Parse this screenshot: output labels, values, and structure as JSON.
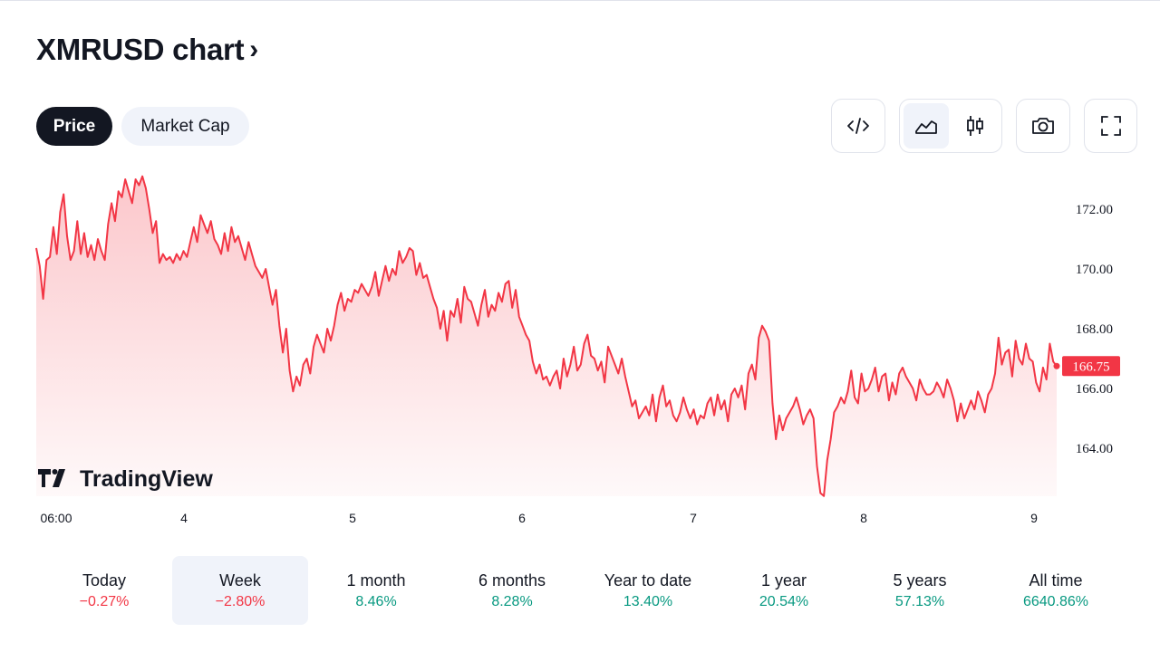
{
  "header": {
    "title": "XMRUSD chart",
    "chevron": "›"
  },
  "tabs": [
    {
      "label": "Price",
      "active": true
    },
    {
      "label": "Market Cap",
      "active": false
    }
  ],
  "toolbar": {
    "embed_icon": "code-icon",
    "area_icon": "area-chart-icon",
    "candle_icon": "candlestick-icon",
    "snapshot_icon": "camera-icon",
    "fullscreen_icon": "fullscreen-icon",
    "active_chart_style": "area"
  },
  "chart_data": {
    "type": "area",
    "series": [
      {
        "values": [
          170.7,
          170.1,
          169.0,
          170.3,
          170.4,
          171.4,
          170.5,
          171.9,
          172.5,
          171.1,
          170.3,
          170.6,
          171.6,
          170.5,
          171.2,
          170.4,
          170.8,
          170.3,
          171.0,
          170.6,
          170.3,
          171.5,
          172.2,
          171.6,
          172.6,
          172.4,
          173.0,
          172.6,
          172.2,
          173.0,
          172.8,
          173.1,
          172.7,
          172.0,
          171.2,
          171.6,
          170.2,
          170.5,
          170.3,
          170.4,
          170.2,
          170.5,
          170.3,
          170.6,
          170.4,
          170.9,
          171.4,
          170.9,
          171.8,
          171.5,
          171.2,
          171.6,
          171.0,
          170.8,
          170.5,
          171.2,
          170.6,
          171.4,
          170.9,
          171.1,
          170.7,
          170.3,
          170.9,
          170.5,
          170.1,
          169.9,
          169.7,
          170.0,
          169.4,
          168.8,
          169.3,
          168.1,
          167.2,
          168.0,
          166.6,
          165.9,
          166.4,
          166.1,
          166.8,
          167.0,
          166.5,
          167.4,
          167.8,
          167.5,
          167.2,
          168.0,
          167.6,
          168.1,
          168.8,
          169.2,
          168.6,
          169.0,
          168.9,
          169.3,
          169.2,
          169.5,
          169.3,
          169.1,
          169.4,
          169.9,
          169.1,
          169.6,
          170.1,
          169.6,
          170.0,
          169.8,
          170.6,
          170.2,
          170.4,
          170.7,
          170.6,
          169.8,
          170.2,
          169.7,
          169.8,
          169.4,
          169.0,
          168.7,
          168.0,
          168.6,
          167.6,
          168.6,
          168.4,
          169.0,
          168.2,
          169.4,
          169.0,
          168.9,
          168.5,
          168.1,
          168.8,
          169.3,
          168.4,
          168.8,
          168.6,
          169.2,
          168.9,
          169.5,
          169.6,
          168.7,
          169.3,
          168.4,
          168.1,
          167.8,
          167.6,
          166.9,
          166.5,
          166.8,
          166.3,
          166.4,
          166.1,
          166.4,
          166.6,
          166.0,
          167.0,
          166.4,
          166.8,
          167.4,
          166.6,
          166.8,
          167.5,
          167.8,
          167.1,
          167.0,
          166.6,
          166.9,
          166.2,
          167.4,
          167.1,
          166.8,
          166.5,
          167.0,
          166.4,
          165.9,
          165.4,
          165.6,
          165.0,
          165.2,
          165.4,
          165.1,
          165.8,
          164.9,
          165.7,
          166.1,
          165.4,
          165.6,
          165.1,
          164.9,
          165.2,
          165.7,
          165.3,
          165.0,
          165.3,
          164.8,
          165.1,
          165.0,
          165.5,
          165.7,
          165.1,
          165.8,
          165.3,
          165.6,
          164.9,
          165.8,
          166.0,
          165.7,
          166.1,
          165.3,
          166.5,
          166.8,
          166.3,
          167.7,
          168.1,
          167.9,
          167.6,
          165.5,
          164.3,
          165.1,
          164.6,
          165.0,
          165.2,
          165.4,
          165.7,
          165.3,
          164.8,
          165.1,
          165.3,
          165.0,
          163.4,
          162.5,
          162.4,
          163.6,
          164.3,
          165.2,
          165.4,
          165.7,
          165.5,
          165.9,
          166.6,
          165.7,
          165.5,
          166.5,
          165.9,
          166.0,
          166.3,
          166.7,
          165.9,
          166.4,
          166.5,
          165.6,
          166.2,
          165.8,
          166.5,
          166.7,
          166.4,
          166.2,
          166.0,
          165.6,
          166.3,
          166.0,
          165.8,
          165.8,
          165.9,
          166.2,
          166.0,
          165.7,
          166.3,
          166.0,
          165.6,
          164.9,
          165.5,
          165.0,
          165.3,
          165.6,
          165.3,
          165.9,
          165.6,
          165.2,
          165.8,
          166.0,
          166.5,
          167.7,
          166.8,
          167.2,
          167.3,
          166.4,
          167.6,
          167.0,
          166.8,
          167.5,
          167.0,
          166.9,
          166.2,
          165.9,
          166.7,
          166.3,
          167.5,
          166.9,
          166.75
        ]
      }
    ],
    "x_ticks": [
      "06:00",
      "4",
      "5",
      "6",
      "7",
      "8",
      "9"
    ],
    "y_ticks": [
      "172.00",
      "170.00",
      "168.00",
      "166.00",
      "164.00"
    ],
    "ylim": [
      162.3,
      173.6
    ],
    "last_value_label": "166.75",
    "line_color": "#f23645",
    "watermark": "TradingView",
    "grid": false,
    "legend": "none"
  },
  "periods": [
    {
      "label": "Today",
      "value": "−0.27%",
      "trend": "neg",
      "active": false
    },
    {
      "label": "Week",
      "value": "−2.80%",
      "trend": "neg",
      "active": true
    },
    {
      "label": "1 month",
      "value": "8.46%",
      "trend": "pos",
      "active": false
    },
    {
      "label": "6 months",
      "value": "8.28%",
      "trend": "pos",
      "active": false
    },
    {
      "label": "Year to date",
      "value": "13.40%",
      "trend": "pos",
      "active": false
    },
    {
      "label": "1 year",
      "value": "20.54%",
      "trend": "pos",
      "active": false
    },
    {
      "label": "5 years",
      "value": "57.13%",
      "trend": "pos",
      "active": false
    },
    {
      "label": "All time",
      "value": "6640.86%",
      "trend": "pos",
      "active": false
    }
  ]
}
